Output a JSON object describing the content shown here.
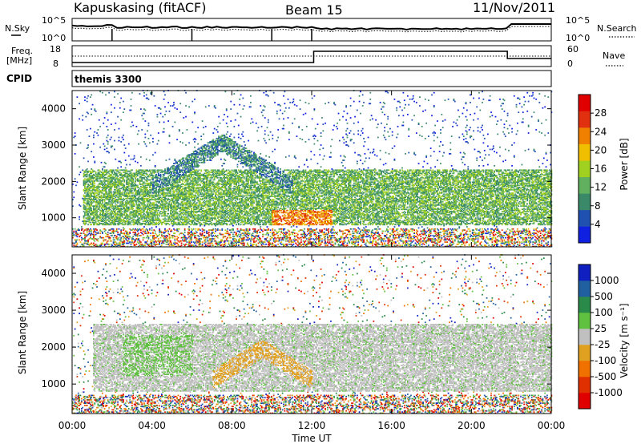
{
  "header": {
    "station": "Kapuskasing (fitACF)",
    "beam": "Beam 15",
    "date": "11/Nov/2011"
  },
  "strip_panels": {
    "noise": {
      "left_label": "N.Sky",
      "left_ticks": [
        "10^5",
        "10^0"
      ],
      "right_label": "N.Search",
      "right_ticks": [
        "10^5",
        "10^0"
      ]
    },
    "freq": {
      "left_label": "Freq.",
      "left_unit": "[MHz]",
      "left_ticks": [
        "18",
        "8"
      ],
      "right_label": "Nave",
      "right_ticks": [
        "60",
        "0"
      ]
    },
    "cpid": {
      "left_label": "CPID",
      "mode": "themis 3300"
    }
  },
  "chart_data": [
    {
      "type": "heatmap",
      "title": "",
      "panel": "power",
      "xlabel": "Time UT",
      "ylabel": "Slant Range [km]",
      "xlim": [
        0,
        24
      ],
      "x_ticks": [
        "00:00",
        "04:00",
        "08:00",
        "12:00",
        "16:00",
        "20:00",
        "00:00"
      ],
      "ylim": [
        200,
        4500
      ],
      "y_ticks": [
        "1000",
        "2000",
        "3000",
        "4000"
      ],
      "colorbar": {
        "label": "Power [dB]",
        "ticks": [
          "4",
          "8",
          "12",
          "16",
          "20",
          "24",
          "28"
        ],
        "colors": [
          "#1020e0",
          "#2050b0",
          "#3a8a6a",
          "#60b060",
          "#a0d020",
          "#f0c000",
          "#f08000",
          "#e03010",
          "#e00000"
        ]
      },
      "features": [
        {
          "region": "main echo band",
          "time_range": [
            0.5,
            24
          ],
          "range_km": [
            800,
            2300
          ],
          "dominant_power_db": 12
        },
        {
          "region": "arc",
          "time_range": [
            4,
            11
          ],
          "range_km": [
            1500,
            3300
          ],
          "dominant_power_db": 10
        },
        {
          "region": "enhanced near range",
          "time_range": [
            10,
            13
          ],
          "range_km": [
            800,
            1200
          ],
          "dominant_power_db": 24
        }
      ]
    },
    {
      "type": "heatmap",
      "title": "",
      "panel": "velocity",
      "xlabel": "Time UT",
      "ylabel": "Slant Range [km]",
      "xlim": [
        0,
        24
      ],
      "x_ticks": [
        "00:00",
        "04:00",
        "08:00",
        "12:00",
        "16:00",
        "20:00",
        "00:00"
      ],
      "ylim": [
        200,
        4500
      ],
      "y_ticks": [
        "1000",
        "2000",
        "3000",
        "4000"
      ],
      "colorbar": {
        "label": "Velocity [m s⁻¹]",
        "ticks": [
          "1000",
          "500",
          "100",
          "25",
          "-25",
          "-100",
          "-500",
          "-1000"
        ],
        "colors": [
          "#1020c0",
          "#2060a0",
          "#2a8a4a",
          "#60c040",
          "#c0c0c0",
          "#e0a020",
          "#f07000",
          "#e03000",
          "#e00000"
        ]
      },
      "features": [
        {
          "region": "ground scatter band",
          "time_range": [
            1,
            24
          ],
          "range_km": [
            800,
            2600
          ],
          "velocity": "-25..25"
        },
        {
          "region": "negative velocity patch",
          "time_range": [
            7,
            12
          ],
          "range_km": [
            900,
            2200
          ],
          "velocity": "-100"
        },
        {
          "region": "positive velocity patch",
          "time_range": [
            2.5,
            6
          ],
          "range_km": [
            1200,
            2300
          ],
          "velocity": "100"
        }
      ]
    }
  ]
}
